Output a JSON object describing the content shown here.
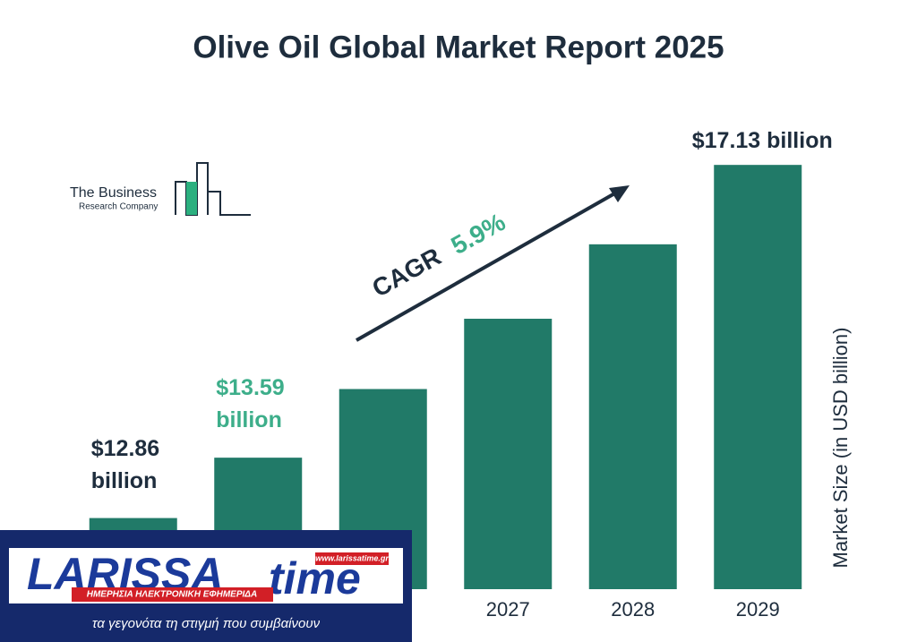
{
  "chart_data": {
    "type": "bar",
    "title": "Olive Oil Global Market Report 2025",
    "categories": [
      null,
      null,
      null,
      "2027",
      "2028",
      "2029"
    ],
    "values": [
      12.86,
      13.59,
      14.42,
      15.27,
      16.17,
      17.13
    ],
    "value_labels": [
      "$12.86 billion",
      "$13.59 billion",
      null,
      null,
      null,
      "$17.13 billion"
    ],
    "color": "#217a68",
    "ylim": [
      12,
      17.5
    ],
    "y_label": "Market Size (in USD billion)",
    "annotation": {
      "label": "CAGR",
      "value": "5.9%"
    }
  },
  "logo": {
    "line1": "The Business",
    "line2": "Research Company"
  },
  "overlay": {
    "brand1": "LARISSA",
    "brand2": "time",
    "url": "www.larissatime.gr",
    "tagline": "ΗΜΕΡΗΣΙΑ ΗΛΕΚΤΡΟΝΙΚΗ ΕΦΗΜΕΡΙΔΑ",
    "slogan": "τα γεγονότα τη στιγμή που συμβαίνουν"
  }
}
